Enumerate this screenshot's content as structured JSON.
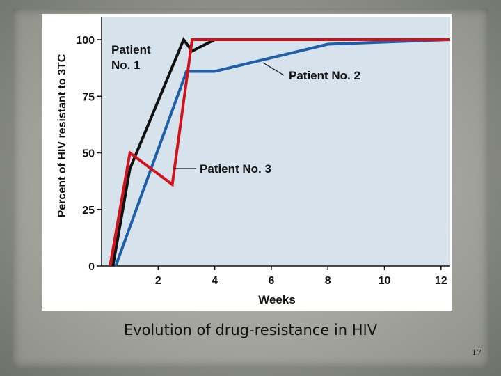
{
  "caption": "Evolution of drug-resistance in HIV",
  "page_number": "17",
  "colors": {
    "plot_background": "#d6e3ec",
    "patient1": "#111111",
    "patient2": "#1f5fa8",
    "patient3": "#d1121b"
  },
  "chart_data": {
    "type": "line",
    "title": "",
    "xlabel": "Weeks",
    "ylabel": "Percent of HIV resistant to 3TC",
    "xlim": [
      0,
      12.3
    ],
    "ylim": [
      0,
      100
    ],
    "xticks": [
      2,
      4,
      6,
      8,
      10,
      12
    ],
    "yticks": [
      0,
      25,
      50,
      75,
      100
    ],
    "grid": false,
    "series": [
      {
        "name": "Patient No. 1",
        "label_lines": [
          "Patient",
          "No. 1"
        ],
        "color": "#111111",
        "x": [
          0.4,
          1.0,
          2.9,
          3.2,
          4.0,
          12.3
        ],
        "y": [
          0,
          43,
          100,
          95,
          100,
          100
        ]
      },
      {
        "name": "Patient No. 2",
        "label_lines": [
          "Patient No. 2"
        ],
        "color": "#1f5fa8",
        "x": [
          0.5,
          3.0,
          4.0,
          8.0,
          12.3
        ],
        "y": [
          0,
          86,
          86,
          98,
          100
        ]
      },
      {
        "name": "Patient No. 3",
        "label_lines": [
          "Patient No. 3"
        ],
        "color": "#d1121b",
        "x": [
          0.3,
          1.0,
          2.5,
          3.2,
          4.0,
          12.3
        ],
        "y": [
          0,
          50,
          36,
          100,
          100,
          100
        ]
      }
    ]
  }
}
